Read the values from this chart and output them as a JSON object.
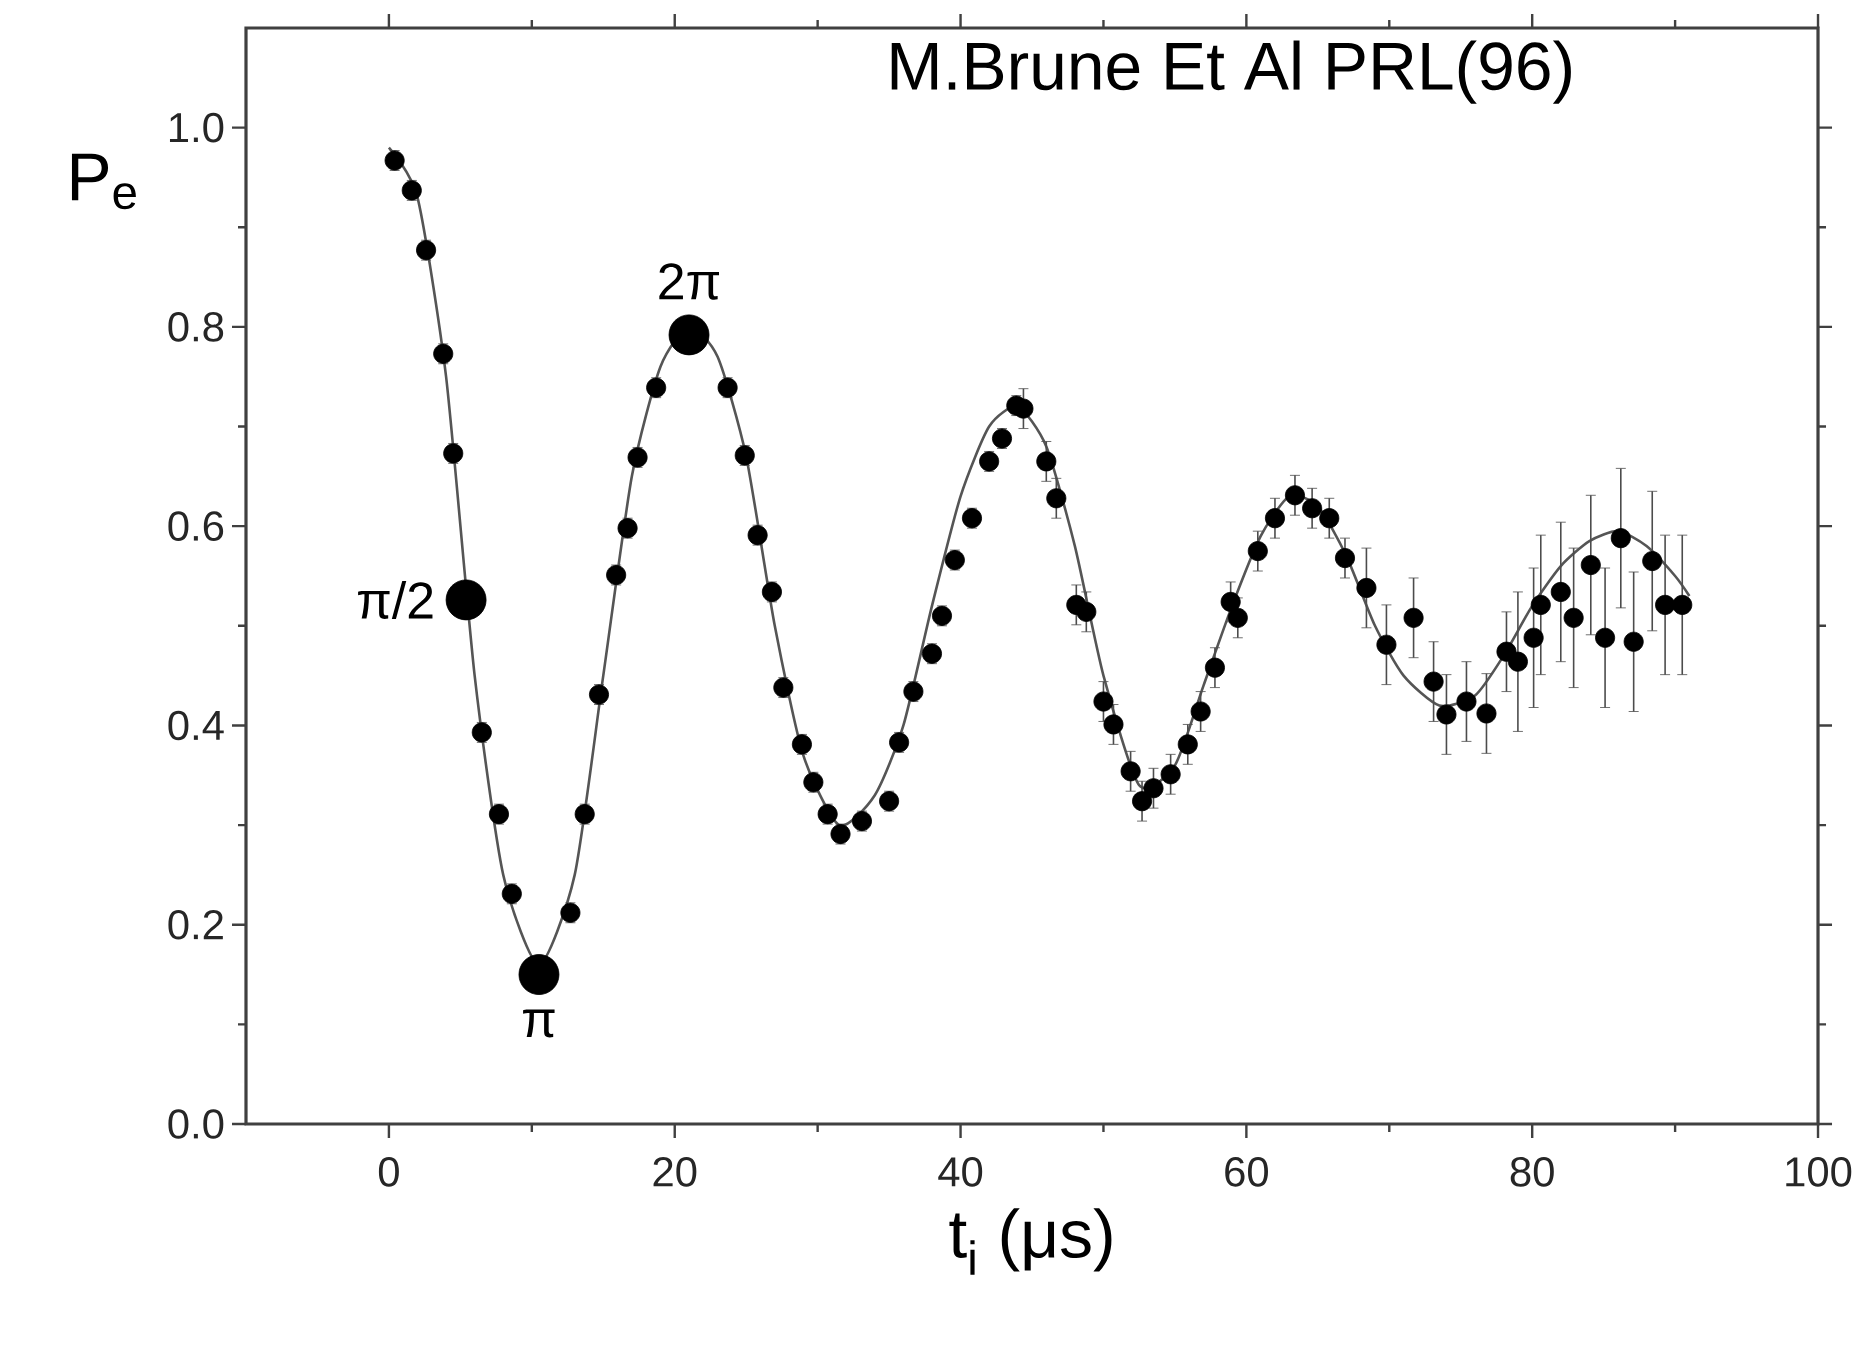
{
  "chart_data": {
    "type": "scatter",
    "title": "M.Brune Et Al PRL(96)",
    "xlabel": "t$_{i}$ (μs)",
    "ylabel": "P$_{e}$",
    "xlim": [
      -10,
      100
    ],
    "ylim": [
      0,
      1.1
    ],
    "xticks": [
      0,
      20,
      40,
      60,
      80,
      100
    ],
    "yticks": [
      {
        "value": 0,
        "label": "0.0"
      },
      {
        "value": 0.2,
        "label": "0.2"
      },
      {
        "value": 0.4,
        "label": "0.4"
      },
      {
        "value": 0.6,
        "label": "0.6"
      },
      {
        "value": 0.8,
        "label": "0.8"
      },
      {
        "value": 1.0,
        "label": "1.0"
      }
    ],
    "series": [
      {
        "type": "line",
        "marker": "none",
        "color": "#555555",
        "x": [
          0,
          2,
          4,
          6,
          8,
          10.5,
          13,
          15,
          17,
          19,
          21,
          23,
          25,
          27,
          29,
          31.5,
          34,
          36,
          38,
          40,
          42,
          44,
          46,
          48,
          50,
          52.5,
          55,
          57,
          59,
          61,
          63,
          65,
          67,
          69,
          71,
          73.5,
          76,
          78,
          80,
          82,
          84,
          86,
          88,
          90,
          91
        ],
        "values": [
          0.98,
          0.93,
          0.75,
          0.45,
          0.25,
          0.16,
          0.25,
          0.45,
          0.65,
          0.76,
          0.8,
          0.77,
          0.67,
          0.5,
          0.37,
          0.3,
          0.33,
          0.4,
          0.52,
          0.63,
          0.7,
          0.72,
          0.68,
          0.58,
          0.45,
          0.34,
          0.36,
          0.44,
          0.52,
          0.59,
          0.63,
          0.62,
          0.57,
          0.5,
          0.45,
          0.42,
          0.43,
          0.47,
          0.52,
          0.56,
          0.585,
          0.595,
          0.58,
          0.55,
          0.53
        ]
      },
      {
        "marker": "circle",
        "color": "#000000",
        "x": [
          0.4,
          1.6,
          2.6,
          3.8,
          4.5,
          6.5,
          7.7,
          8.6,
          12.7,
          13.7,
          14.7,
          15.9,
          16.7,
          17.4,
          18.7,
          23.7,
          24.9,
          25.8,
          26.8,
          27.6,
          28.9,
          29.7,
          30.7,
          31.6,
          33.1,
          35.0,
          35.7,
          36.7,
          38.0,
          38.7,
          39.6,
          40.8,
          42.0,
          42.9,
          43.9,
          44.4,
          46.0,
          46.7,
          48.1,
          48.8,
          50.0,
          50.7,
          51.9,
          52.7,
          53.5,
          54.7,
          55.9,
          56.8,
          57.8,
          58.9,
          59.4,
          60.8,
          62.0,
          63.4,
          64.6,
          65.8,
          66.9,
          68.4,
          69.8,
          71.7,
          73.1,
          74.0,
          75.4,
          76.8,
          78.2,
          79.0,
          80.1,
          80.6,
          82.0,
          82.9,
          84.1,
          85.1,
          86.2,
          87.1,
          88.4,
          89.3,
          90.5
        ],
        "values": [
          0.967,
          0.937,
          0.877,
          0.773,
          0.673,
          0.393,
          0.311,
          0.231,
          0.212,
          0.311,
          0.431,
          0.551,
          0.598,
          0.669,
          0.739,
          0.739,
          0.671,
          0.591,
          0.534,
          0.438,
          0.381,
          0.343,
          0.311,
          0.291,
          0.304,
          0.324,
          0.383,
          0.434,
          0.472,
          0.51,
          0.566,
          0.608,
          0.665,
          0.688,
          0.721,
          0.718,
          0.665,
          0.628,
          0.521,
          0.514,
          0.424,
          0.401,
          0.354,
          0.324,
          0.337,
          0.351,
          0.381,
          0.414,
          0.458,
          0.524,
          0.508,
          0.575,
          0.608,
          0.631,
          0.618,
          0.608,
          0.568,
          0.538,
          0.481,
          0.508,
          0.444,
          0.411,
          0.424,
          0.412,
          0.474,
          0.464,
          0.488,
          0.521,
          0.534,
          0.508,
          0.561,
          0.488,
          0.588,
          0.484,
          0.565,
          0.521,
          0.521
        ],
        "errors": [
          0.01,
          0.01,
          0.01,
          0.01,
          0.01,
          0.01,
          0.01,
          0.01,
          0.01,
          0.01,
          0.01,
          0.01,
          0.01,
          0.01,
          0.01,
          0.01,
          0.01,
          0.01,
          0.01,
          0.01,
          0.01,
          0.01,
          0.01,
          0.01,
          0.01,
          0.01,
          0.01,
          0.01,
          0.01,
          0.01,
          0.01,
          0.01,
          0.01,
          0.01,
          0.01,
          0.02,
          0.02,
          0.02,
          0.02,
          0.02,
          0.02,
          0.02,
          0.02,
          0.02,
          0.02,
          0.02,
          0.02,
          0.02,
          0.02,
          0.02,
          0.02,
          0.02,
          0.02,
          0.02,
          0.02,
          0.02,
          0.02,
          0.04,
          0.04,
          0.04,
          0.04,
          0.04,
          0.04,
          0.04,
          0.04,
          0.07,
          0.07,
          0.07,
          0.07,
          0.07,
          0.07,
          0.07,
          0.07,
          0.07,
          0.07,
          0.07,
          0.07
        ]
      },
      {
        "marker": "circle",
        "color": "#000000",
        "x": [
          5.4,
          10.5,
          21.0
        ],
        "values": [
          0.526,
          0.15,
          0.792
        ]
      }
    ],
    "annotations": [
      {
        "text": "π/2",
        "x": 5.4,
        "y": 0.526
      },
      {
        "text": "π",
        "x": 10.5,
        "y": 0.15
      },
      {
        "text": "2π",
        "x": 21.0,
        "y": 0.792
      }
    ]
  }
}
